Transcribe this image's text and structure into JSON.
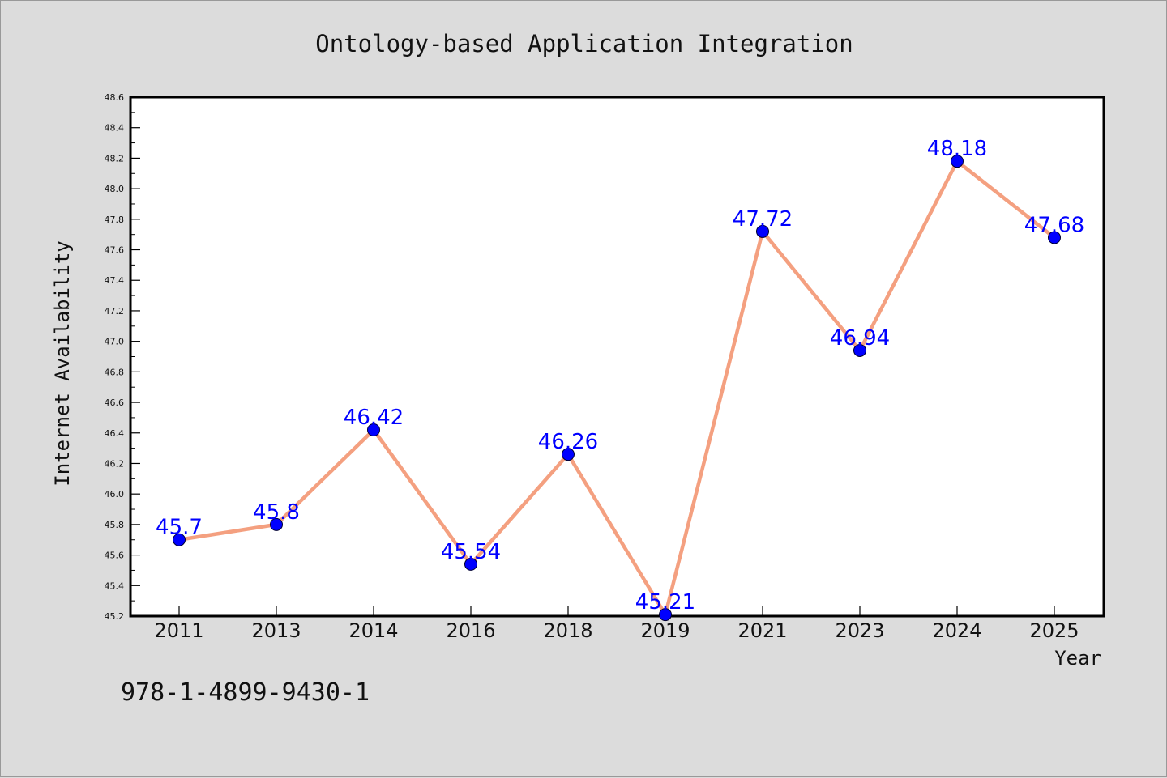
{
  "chart_data": {
    "type": "line",
    "title": "Ontology-based Application Integration",
    "xlabel": "Year",
    "ylabel": "Internet Availability",
    "categories": [
      "2011",
      "2013",
      "2014",
      "2016",
      "2018",
      "2019",
      "2021",
      "2023",
      "2024",
      "2025"
    ],
    "series": [
      {
        "values": [
          45.7,
          45.8,
          46.42,
          45.54,
          46.26,
          45.21,
          47.72,
          46.94,
          48.18,
          47.68
        ],
        "data_labels": [
          "45.7",
          "45.8",
          "46.42",
          "45.54",
          "46.26",
          "45.21",
          "47.72",
          "46.94",
          "48.18",
          "47.68"
        ],
        "line_color": "#f4a080",
        "marker_color": "#0000ff"
      }
    ],
    "ylim": [
      45.2,
      48.6
    ],
    "yticks": [
      "45.2",
      "45.4",
      "45.6",
      "45.8",
      "46.0",
      "46.2",
      "46.4",
      "46.6",
      "46.8",
      "47.0",
      "47.2",
      "47.4",
      "47.6",
      "47.8",
      "48.0",
      "48.2",
      "48.4",
      "48.6"
    ],
    "grid": false,
    "legend": "none"
  },
  "footnote": "978-1-4899-9430-1",
  "colors": {
    "background": "#dcdcdc",
    "plot_background": "#ffffff",
    "axis": "#000000"
  }
}
